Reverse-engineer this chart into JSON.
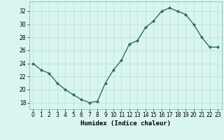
{
  "x": [
    0,
    1,
    2,
    3,
    4,
    5,
    6,
    7,
    8,
    9,
    10,
    11,
    12,
    13,
    14,
    15,
    16,
    17,
    18,
    19,
    20,
    21,
    22,
    23
  ],
  "y": [
    24,
    23,
    22.5,
    21,
    20,
    19.2,
    18.5,
    18,
    18.2,
    21,
    23,
    24.5,
    27,
    27.5,
    29.5,
    30.5,
    32,
    32.5,
    32,
    31.5,
    30,
    28,
    26.5,
    26.5
  ],
  "line_color": "#2e6b6b",
  "marker": "D",
  "marker_size": 2.0,
  "bg_color": "#d8f5f0",
  "grid_color": "#b8ddd8",
  "xlabel": "Humidex (Indice chaleur)",
  "ylim": [
    17,
    33.5
  ],
  "xlim": [
    -0.5,
    23.5
  ],
  "yticks": [
    18,
    20,
    22,
    24,
    26,
    28,
    30,
    32
  ],
  "xticks": [
    0,
    1,
    2,
    3,
    4,
    5,
    6,
    7,
    8,
    9,
    10,
    11,
    12,
    13,
    14,
    15,
    16,
    17,
    18,
    19,
    20,
    21,
    22,
    23
  ],
  "tick_fontsize": 5.5,
  "xlabel_fontsize": 6.5,
  "linewidth": 1.0
}
